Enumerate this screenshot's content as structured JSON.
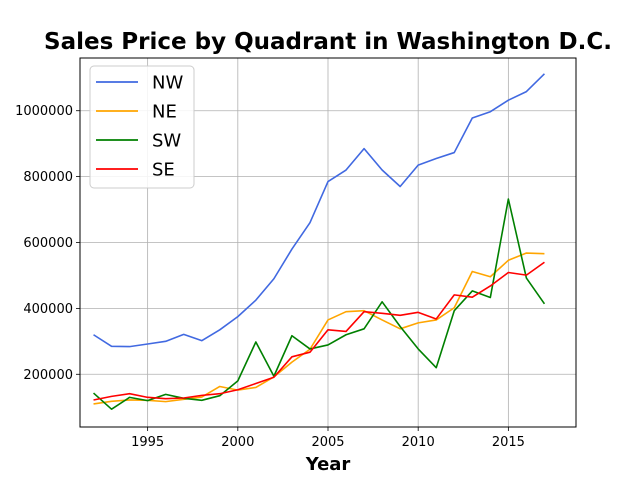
{
  "chart_data": {
    "type": "line",
    "title": "Sales Price by Quadrant in Washington D.C.",
    "xlabel": "Year",
    "ylabel": "",
    "xlim": [
      1991.25,
      2018.75
    ],
    "ylim": [
      40000,
      1160000
    ],
    "xticks": [
      1995,
      2000,
      2005,
      2010,
      2015
    ],
    "yticks": [
      200000,
      400000,
      600000,
      800000,
      1000000
    ],
    "grid": true,
    "legend_position": "top-left",
    "x": [
      1992,
      1993,
      1994,
      1995,
      1996,
      1997,
      1998,
      1999,
      2000,
      2001,
      2002,
      2003,
      2004,
      2005,
      2006,
      2007,
      2008,
      2009,
      2010,
      2011,
      2012,
      2013,
      2014,
      2015,
      2016,
      2017
    ],
    "series": [
      {
        "name": "NW",
        "color": "#4169e1",
        "values": [
          320000,
          285000,
          284000,
          292000,
          300000,
          321000,
          302000,
          335000,
          375000,
          425000,
          490000,
          580000,
          660000,
          785000,
          820000,
          885000,
          820000,
          770000,
          835000,
          855000,
          873000,
          978000,
          997000,
          1032000,
          1058000,
          1112000
        ]
      },
      {
        "name": "NE",
        "color": "#ffa500",
        "values": [
          110000,
          118000,
          122000,
          121000,
          117000,
          124000,
          131000,
          163000,
          152000,
          160000,
          192000,
          237000,
          276000,
          365000,
          390000,
          393000,
          365000,
          338000,
          356000,
          365000,
          402000,
          512000,
          496000,
          546000,
          568000,
          566000
        ]
      },
      {
        "name": "SW",
        "color": "#008000",
        "values": [
          143000,
          94000,
          130000,
          120000,
          139000,
          127000,
          121000,
          135000,
          180000,
          298000,
          194000,
          317000,
          277000,
          289000,
          320000,
          338000,
          420000,
          345000,
          277000,
          220000,
          393000,
          453000,
          433000,
          732000,
          492000,
          414000
        ]
      },
      {
        "name": "SE",
        "color": "#ff0000",
        "values": [
          122000,
          133000,
          141000,
          130000,
          126000,
          128000,
          136000,
          141000,
          153000,
          172000,
          191000,
          253000,
          267000,
          335000,
          330000,
          390000,
          385000,
          379000,
          388000,
          368000,
          441000,
          434000,
          468000,
          509000,
          501000,
          540000
        ]
      }
    ]
  }
}
